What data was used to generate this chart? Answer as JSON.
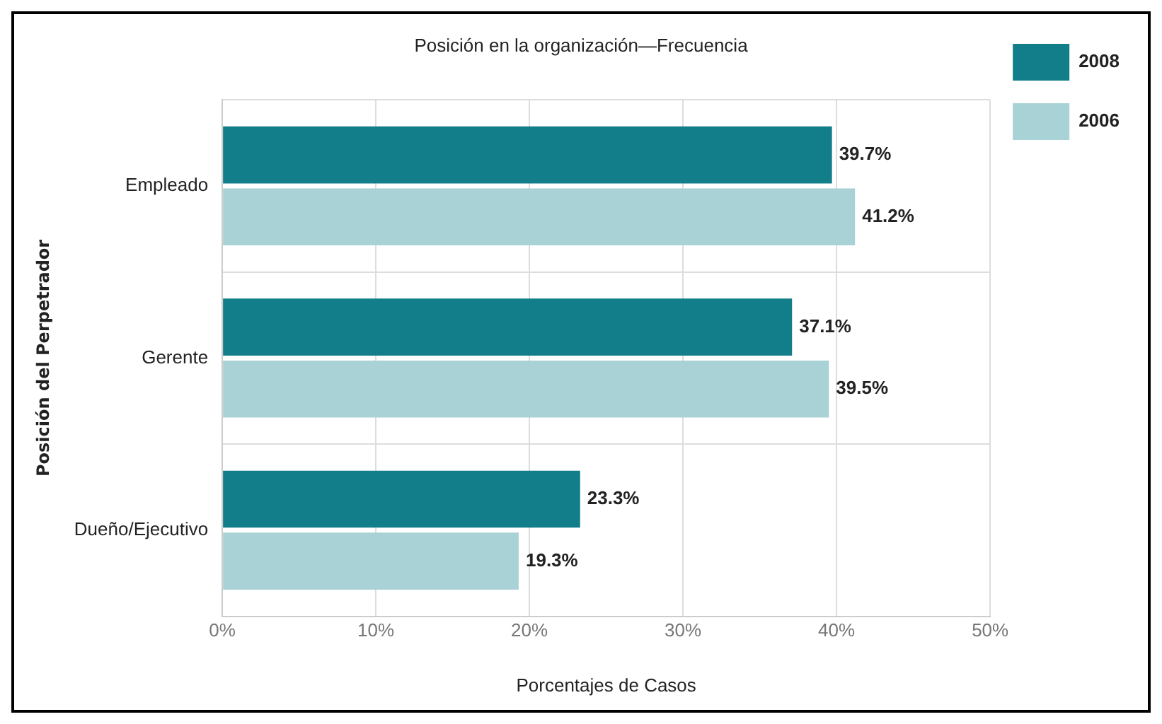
{
  "chart_data": {
    "type": "bar",
    "orientation": "horizontal",
    "title": "Posición en la organización—Frecuencia",
    "xlabel": "Porcentajes de Casos",
    "ylabel": "Posición del Perpetrador",
    "categories": [
      "Empleado",
      "Gerente",
      "Dueño/Ejecutivo"
    ],
    "series": [
      {
        "name": "2008",
        "color": "#127e89",
        "values": [
          39.7,
          37.1,
          23.3
        ],
        "value_labels": [
          "39.7%",
          "37.1%",
          "23.3%"
        ]
      },
      {
        "name": "2006",
        "color": "#a9d2d6",
        "values": [
          41.2,
          39.5,
          19.3
        ],
        "value_labels": [
          "41.2%",
          "39.5%",
          "19.3%"
        ]
      }
    ],
    "xlim": [
      0,
      50
    ],
    "xticks": [
      {
        "value": 0,
        "label": "0%"
      },
      {
        "value": 10,
        "label": "10%"
      },
      {
        "value": 20,
        "label": "20%"
      },
      {
        "value": 30,
        "label": "30%"
      },
      {
        "value": 40,
        "label": "40%"
      },
      {
        "value": 50,
        "label": "50%"
      }
    ],
    "grid": true,
    "legend": "top right"
  }
}
